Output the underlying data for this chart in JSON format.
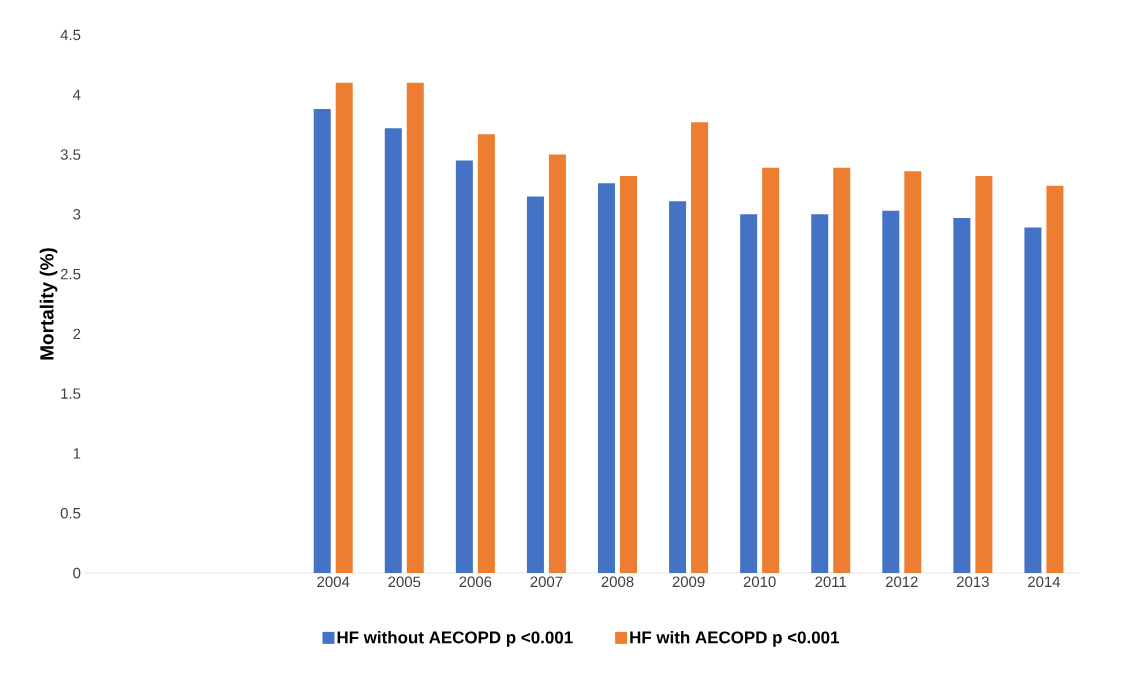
{
  "chart_data": {
    "type": "bar",
    "ylabel": "Mortality (%)",
    "categories": [
      null,
      null,
      null,
      "2004",
      "2005",
      "2006",
      "2007",
      "2008",
      "2009",
      "2010",
      "2011",
      "2012",
      "2013",
      "2014"
    ],
    "series": [
      {
        "name": "HF without AECOPD p <0.001",
        "color": "#4472c4",
        "values": [
          null,
          null,
          null,
          3.88,
          3.72,
          3.45,
          3.15,
          3.26,
          3.11,
          3.0,
          3.0,
          3.03,
          2.97,
          2.89
        ]
      },
      {
        "name": "HF with AECOPD p <0.001",
        "color": "#ed7d31",
        "values": [
          null,
          null,
          null,
          4.1,
          4.1,
          3.67,
          3.5,
          3.32,
          3.77,
          3.39,
          3.39,
          3.36,
          3.32,
          3.24
        ]
      }
    ],
    "ylim": [
      0,
      4.5
    ],
    "yticks": [
      0,
      0.5,
      1,
      1.5,
      2,
      2.5,
      3,
      3.5,
      4,
      4.5
    ],
    "grid": false,
    "legend": "bottom"
  }
}
